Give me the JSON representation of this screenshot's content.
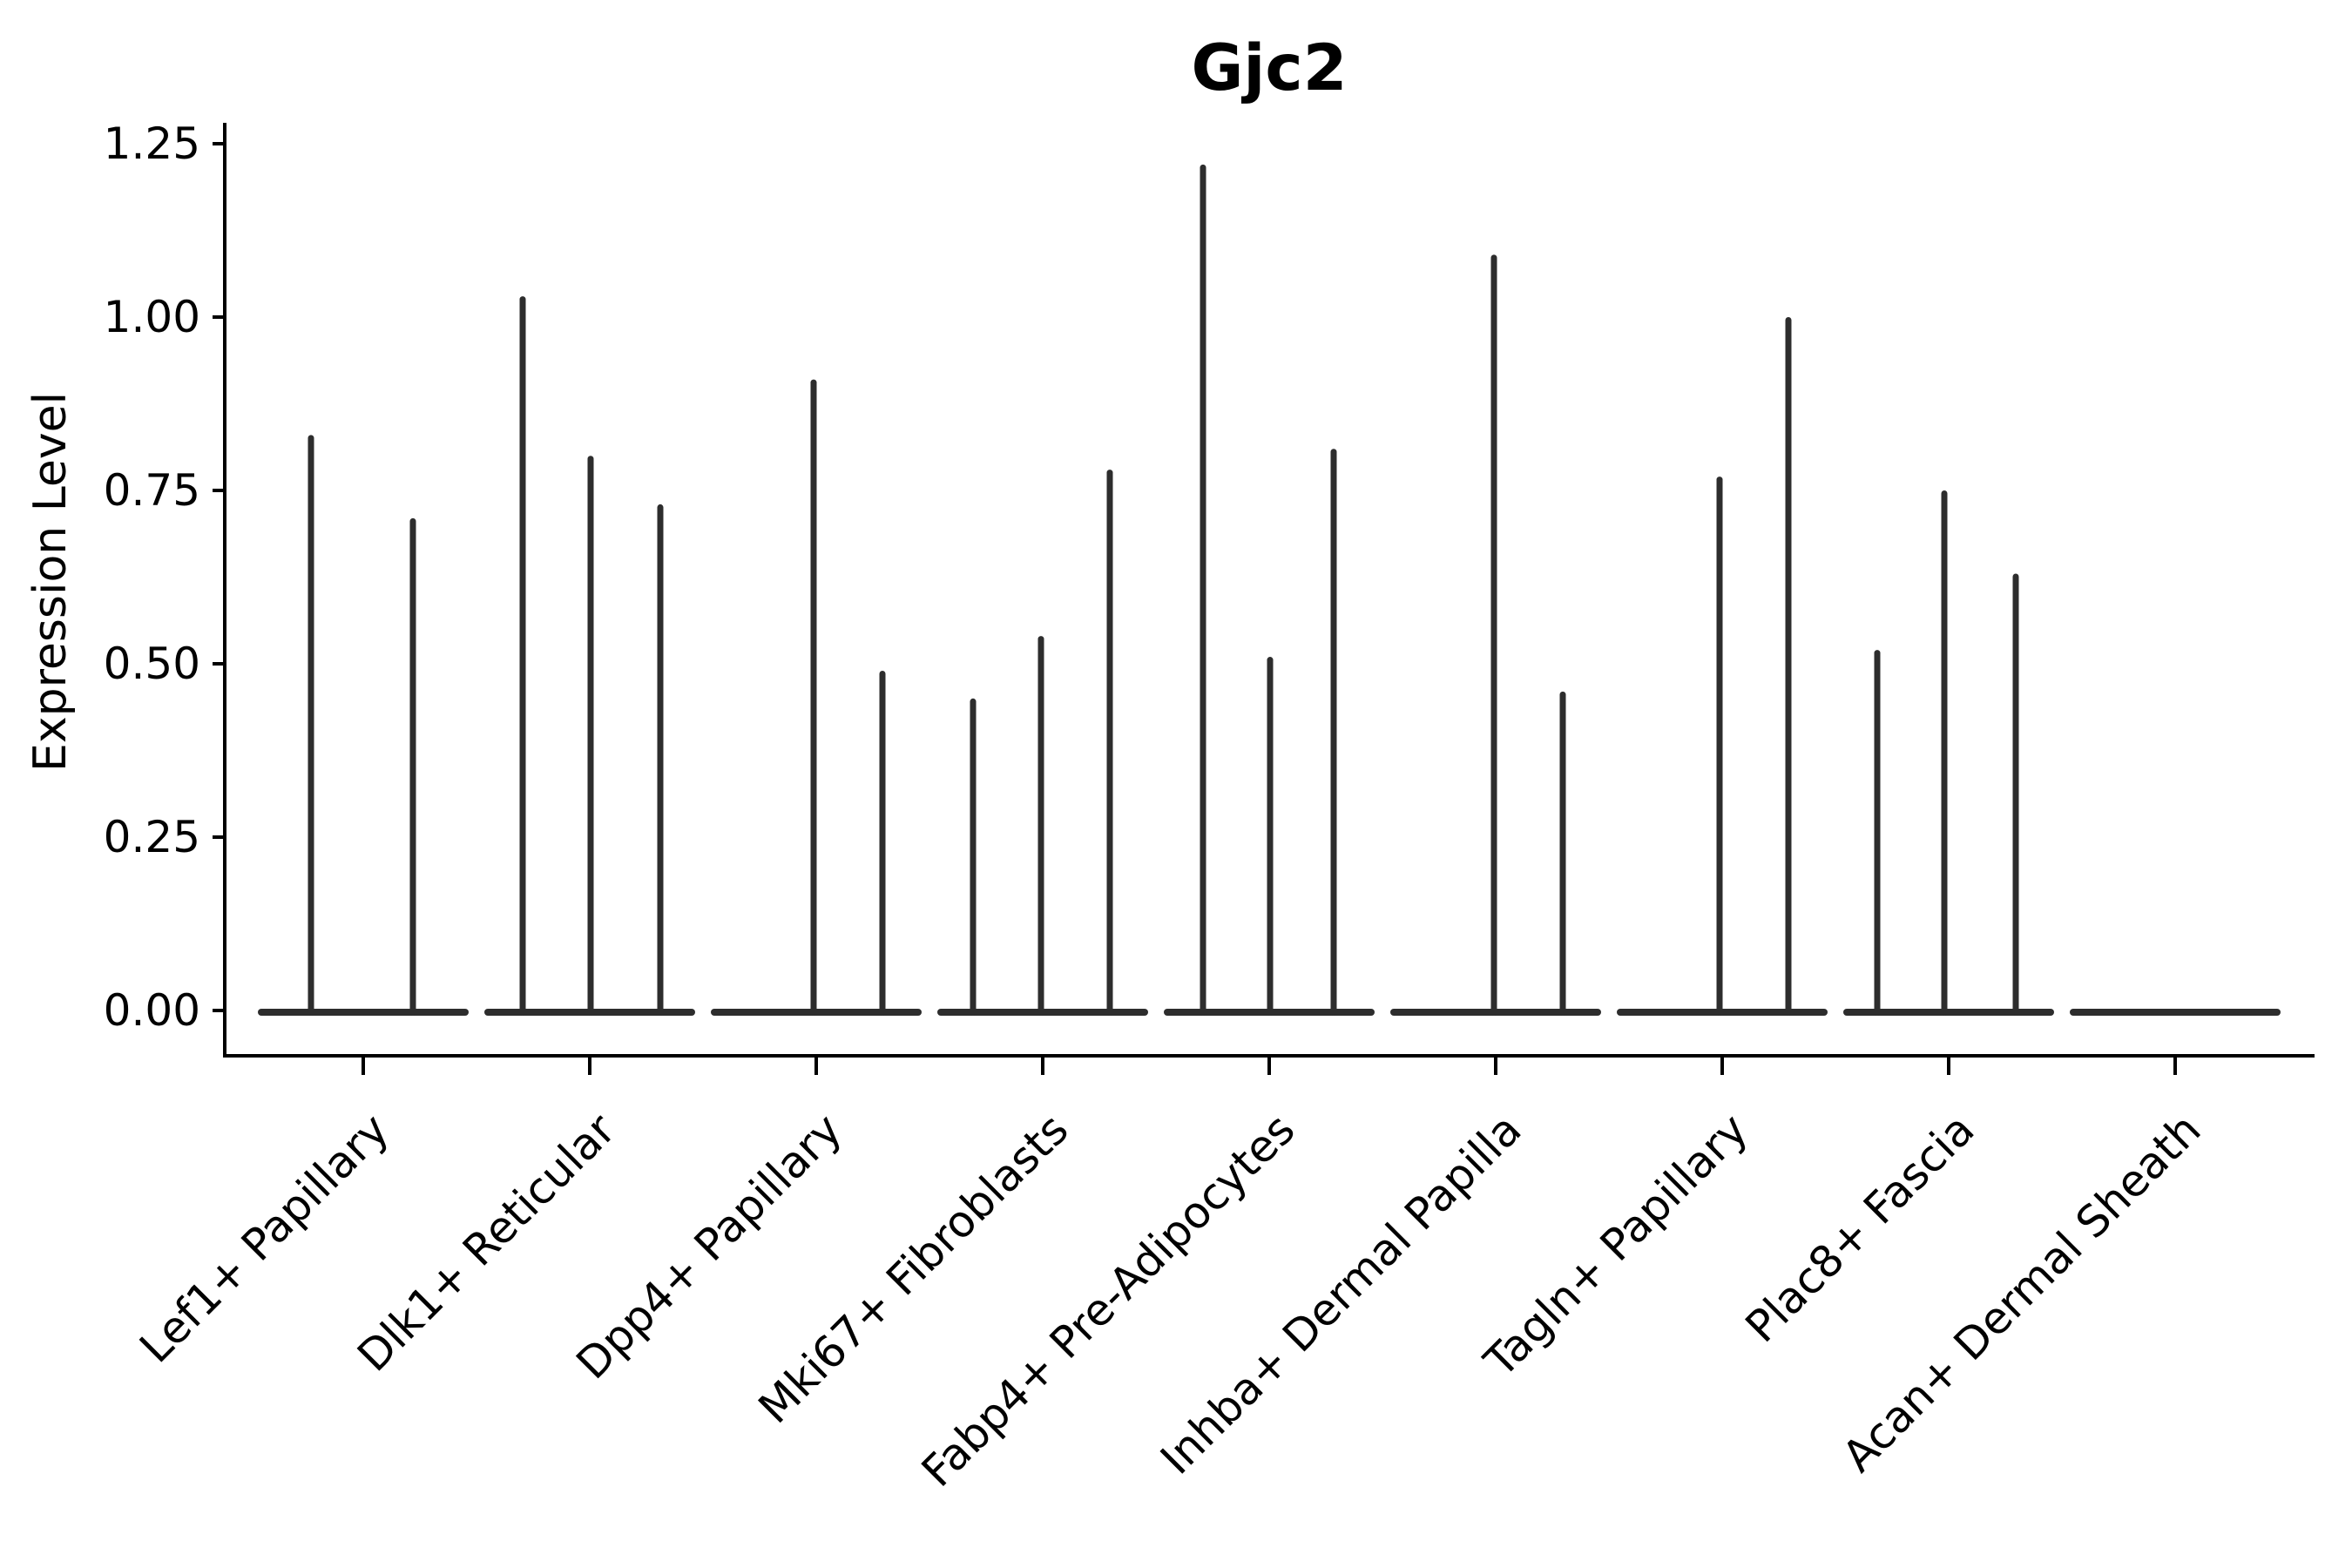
{
  "chart_data": {
    "type": "violin",
    "title": "Gjc2",
    "xlabel": "",
    "ylabel": "Expression Level",
    "categories": [
      "Lef1+ Papillary",
      "Dlk1+ Reticular",
      "Dpp4+ Papillary",
      "Mki67+ Fibroblasts",
      "Fabp4+ Pre-Adipocytes",
      "Inhba+ Dermal Papilla",
      "Tagln+ Papillary",
      "Plac8+ Fascia",
      "Acan+ Dermal Sheath"
    ],
    "y_ticks": [
      0.0,
      0.25,
      0.5,
      0.75,
      1.0,
      1.25
    ],
    "ylim": [
      -0.065,
      1.28
    ],
    "grid": false,
    "legend": "none",
    "violins": [
      {
        "label": "Lef1+ Papillary",
        "spikes": [
          {
            "dx": -60,
            "max": 0.83
          },
          {
            "dx": 57,
            "max": 0.71
          }
        ]
      },
      {
        "label": "Dlk1+ Reticular",
        "spikes": [
          {
            "dx": -77,
            "max": 1.03
          },
          {
            "dx": 1,
            "max": 0.8
          },
          {
            "dx": 81,
            "max": 0.73
          }
        ]
      },
      {
        "label": "Dpp4+ Papillary",
        "spikes": [
          {
            "dx": -3,
            "max": 0.91
          },
          {
            "dx": 76,
            "max": 0.49
          }
        ]
      },
      {
        "label": "Mki67+ Fibroblasts",
        "spikes": [
          {
            "dx": -80,
            "max": 0.45
          },
          {
            "dx": -2,
            "max": 0.54
          },
          {
            "dx": 77,
            "max": 0.78
          }
        ]
      },
      {
        "label": "Fabp4+ Pre-Adipocytes",
        "spikes": [
          {
            "dx": -76,
            "max": 1.22
          },
          {
            "dx": 1,
            "max": 0.51
          },
          {
            "dx": 74,
            "max": 0.81
          }
        ]
      },
      {
        "label": "Inhba+ Dermal Papilla",
        "spikes": [
          {
            "dx": -2,
            "max": 1.09
          },
          {
            "dx": 77,
            "max": 0.46
          }
        ]
      },
      {
        "label": "Tagln+ Papillary",
        "spikes": [
          {
            "dx": -3,
            "max": 0.77
          },
          {
            "dx": 76,
            "max": 1.0
          }
        ]
      },
      {
        "label": "Plac8+ Fascia",
        "spikes": [
          {
            "dx": -82,
            "max": 0.52
          },
          {
            "dx": -5,
            "max": 0.75
          },
          {
            "dx": 77,
            "max": 0.63
          }
        ]
      },
      {
        "label": "Acan+ Dermal Sheath",
        "spikes": []
      }
    ],
    "colors": {
      "ink": "#000000",
      "violin": "#2d2d2d",
      "background": "#ffffff"
    }
  }
}
